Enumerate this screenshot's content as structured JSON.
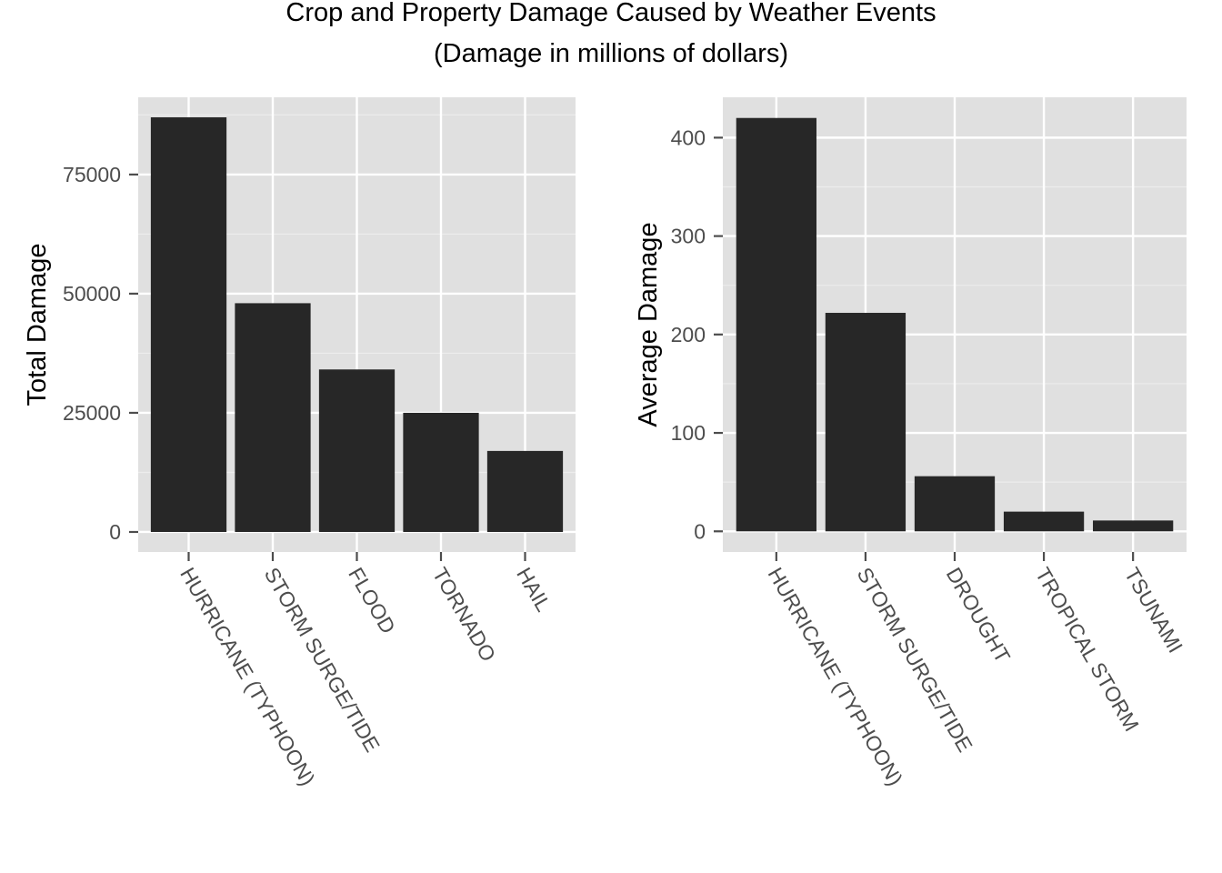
{
  "figure": {
    "title_line1": "Crop and Property Damage Caused by Weather Events",
    "title_line2": "(Damage in millions of dollars)"
  },
  "colors": {
    "panel_background": "#e0e0e0",
    "grid_major": "#ffffff",
    "grid_minor": "#ececec",
    "bar_fill": "#272727",
    "tick_text": "#4d4d4d",
    "tick_mark": "#4d4d4d"
  },
  "chart_data": [
    {
      "type": "bar",
      "title": "",
      "xlabel": "",
      "ylabel": "Total Damage",
      "categories": [
        "HURRICANE (TYPHOON)",
        "STORM SURGE/TIDE",
        "FLOOD",
        "TORNADO",
        "HAIL"
      ],
      "values": [
        87000,
        48000,
        34100,
        25000,
        17000
      ],
      "ylim": [
        -4200,
        91200
      ],
      "yticks": [
        0,
        25000,
        50000,
        75000
      ],
      "ytick_labels": [
        "0",
        "25000",
        "50000",
        "75000"
      ],
      "grid": true,
      "legend": "none"
    },
    {
      "type": "bar",
      "title": "",
      "xlabel": "",
      "ylabel": "Average Damage",
      "categories": [
        "HURRICANE (TYPHOON)",
        "STORM SURGE/TIDE",
        "DROUGHT",
        "TROPICAL STORM",
        "TSUNAMI"
      ],
      "values": [
        420,
        222,
        56,
        20,
        11
      ],
      "ylim": [
        -21,
        441
      ],
      "yticks": [
        0,
        100,
        200,
        300,
        400
      ],
      "ytick_labels": [
        "0",
        "100",
        "200",
        "300",
        "400"
      ],
      "grid": true,
      "legend": "none"
    }
  ]
}
